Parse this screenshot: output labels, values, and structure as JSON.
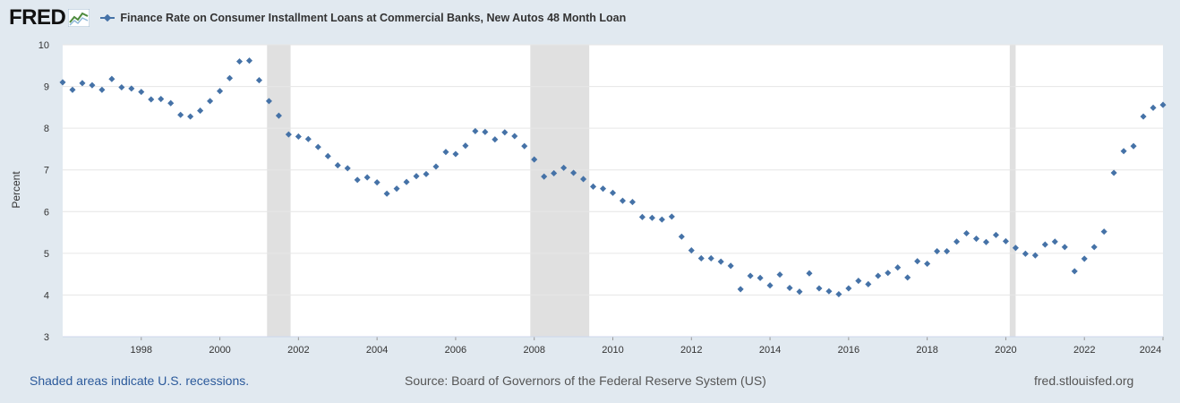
{
  "header": {
    "logo_text": "FRED",
    "legend_label": "Finance Rate on Consumer Installment Loans at Commercial Banks, New Autos 48 Month Loan"
  },
  "footer": {
    "recession_note": "Shaded areas indicate U.S. recessions.",
    "source": "Source: Board of Governors of the Federal Reserve System (US)",
    "site": "fred.stlouisfed.org"
  },
  "colors": {
    "series": "#4572a7",
    "recession": "#e0e0e0",
    "background": "#e1e9f0",
    "plot_area": "#ffffff",
    "footer_link": "#2c5a9b"
  },
  "chart_data": {
    "type": "scatter",
    "title": "",
    "xlabel": "",
    "ylabel": "Percent",
    "xlim": [
      1996.0,
      2024.0
    ],
    "ylim": [
      3,
      10
    ],
    "grid": true,
    "legend_position": "top-left",
    "x_ticks": [
      1998,
      2000,
      2002,
      2004,
      2006,
      2008,
      2010,
      2012,
      2014,
      2016,
      2018,
      2020,
      2022,
      2024
    ],
    "y_ticks": [
      3,
      4,
      5,
      6,
      7,
      8,
      9,
      10
    ],
    "recessions": [
      [
        2001.2,
        2001.8
      ],
      [
        2007.9,
        2009.4
      ],
      [
        2020.1,
        2020.25
      ]
    ],
    "series": [
      {
        "name": "Finance Rate on Consumer Installment Loans at Commercial Banks, New Autos 48 Month Loan",
        "x": [
          1996.0,
          1996.25,
          1996.5,
          1996.75,
          1997.0,
          1997.25,
          1997.5,
          1997.75,
          1998.0,
          1998.25,
          1998.5,
          1998.75,
          1999.0,
          1999.25,
          1999.5,
          1999.75,
          2000.0,
          2000.25,
          2000.5,
          2000.75,
          2001.0,
          2001.25,
          2001.5,
          2001.75,
          2002.0,
          2002.25,
          2002.5,
          2002.75,
          2003.0,
          2003.25,
          2003.5,
          2003.75,
          2004.0,
          2004.25,
          2004.5,
          2004.75,
          2005.0,
          2005.25,
          2005.5,
          2005.75,
          2006.0,
          2006.25,
          2006.5,
          2006.75,
          2007.0,
          2007.25,
          2007.5,
          2007.75,
          2008.0,
          2008.25,
          2008.5,
          2008.75,
          2009.0,
          2009.25,
          2009.5,
          2009.75,
          2010.0,
          2010.25,
          2010.5,
          2010.75,
          2011.0,
          2011.25,
          2011.5,
          2011.75,
          2012.0,
          2012.25,
          2012.5,
          2012.75,
          2013.0,
          2013.25,
          2013.5,
          2013.75,
          2014.0,
          2014.25,
          2014.5,
          2014.75,
          2015.0,
          2015.25,
          2015.5,
          2015.75,
          2016.0,
          2016.25,
          2016.5,
          2016.75,
          2017.0,
          2017.25,
          2017.5,
          2017.75,
          2018.0,
          2018.25,
          2018.5,
          2018.75,
          2019.0,
          2019.25,
          2019.5,
          2019.75,
          2020.0,
          2020.25,
          2020.5,
          2020.75,
          2021.0,
          2021.25,
          2021.5,
          2021.75,
          2022.0,
          2022.25,
          2022.5,
          2022.75,
          2023.0,
          2023.25,
          2023.5,
          2023.75,
          2024.0
        ],
        "y": [
          9.1,
          8.92,
          9.08,
          9.03,
          8.92,
          9.18,
          8.98,
          8.95,
          8.87,
          8.69,
          8.7,
          8.6,
          8.32,
          8.28,
          8.42,
          8.65,
          8.89,
          9.2,
          9.6,
          9.62,
          9.15,
          8.65,
          8.3,
          7.85,
          7.8,
          7.74,
          7.55,
          7.33,
          7.11,
          7.04,
          6.76,
          6.82,
          6.7,
          6.43,
          6.55,
          6.71,
          6.85,
          6.9,
          7.08,
          7.43,
          7.38,
          7.58,
          7.93,
          7.91,
          7.73,
          7.9,
          7.81,
          7.57,
          7.25,
          6.84,
          6.92,
          7.05,
          6.93,
          6.78,
          6.6,
          6.55,
          6.45,
          6.26,
          6.23,
          5.87,
          5.85,
          5.81,
          5.88,
          5.4,
          5.07,
          4.88,
          4.88,
          4.8,
          4.7,
          4.14,
          4.46,
          4.41,
          4.23,
          4.49,
          4.17,
          4.08,
          4.52,
          4.16,
          4.09,
          4.02,
          4.16,
          4.34,
          4.26,
          4.46,
          4.53,
          4.66,
          4.42,
          4.81,
          4.75,
          5.05,
          5.05,
          5.28,
          5.48,
          5.35,
          5.27,
          5.44,
          5.29,
          5.13,
          4.99,
          4.95,
          5.21,
          5.28,
          5.15,
          4.57,
          4.87,
          5.15,
          5.52,
          6.93,
          7.45,
          7.57,
          8.28,
          8.49,
          8.56
        ]
      }
    ]
  }
}
